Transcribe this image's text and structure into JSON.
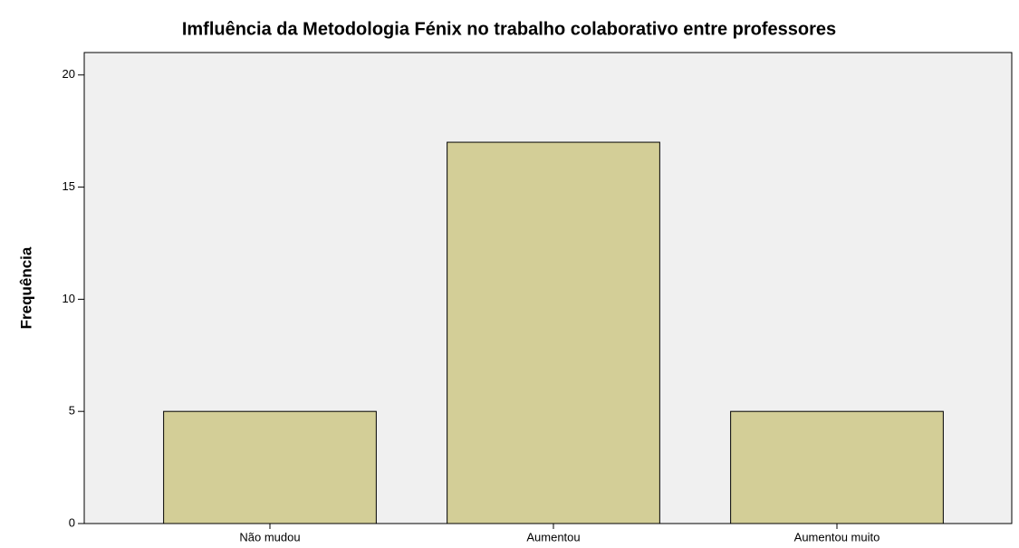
{
  "chart_data": {
    "type": "bar",
    "title": "Imfluência da Metodologia Fénix no trabalho colaborativo entre professores",
    "y_label": "Frequência",
    "categories": [
      "Não mudou",
      "Aumentou",
      "Aumentou muito"
    ],
    "values": [
      5,
      17,
      5
    ],
    "color": "#d3ce97",
    "ylim": [
      0,
      21
    ],
    "yticks": [
      0,
      5,
      10,
      15,
      20
    ],
    "grid": false
  }
}
